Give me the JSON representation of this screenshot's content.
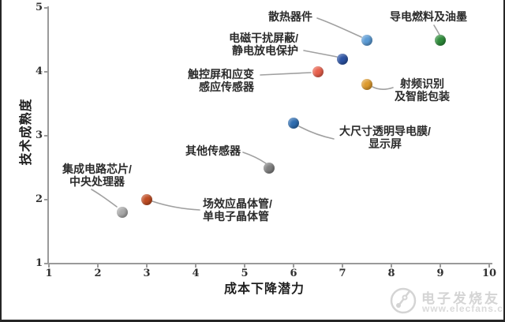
{
  "chart_data": {
    "type": "scatter",
    "title": "",
    "xlabel": "成本下降潜力",
    "ylabel": "技术成熟度",
    "xlim": [
      1,
      10
    ],
    "ylim": [
      1,
      5
    ],
    "xticks": [
      1,
      2,
      3,
      4,
      5,
      6,
      7,
      8,
      9,
      10
    ],
    "yticks": [
      1,
      2,
      3,
      4,
      5
    ],
    "grid": false,
    "legend": "none",
    "points": [
      {
        "name": "heat-dissipation-devices",
        "label": "散热器件",
        "label_lines": [
          "散热器件"
        ],
        "x": 7.5,
        "y": 4.5,
        "color": "#5b9bd5"
      },
      {
        "name": "conductive-fuel-and-ink",
        "label": "导电燃料及油墨",
        "label_lines": [
          "导电燃料及油墨"
        ],
        "x": 9,
        "y": 4.5,
        "color": "#2e8b3a"
      },
      {
        "name": "emi-shielding-esd-protection",
        "label": "电磁干扰屏蔽/静电放电保护",
        "label_lines": [
          "电磁干扰屏蔽/",
          "静电放电保护"
        ],
        "x": 7,
        "y": 4.2,
        "color": "#2b52a3"
      },
      {
        "name": "touchscreen-strain-sensors",
        "label": "触控屏和应变感应传感器",
        "label_lines": [
          "触控屏和应变",
          "感应传感器"
        ],
        "x": 6.5,
        "y": 4,
        "color": "#e8604c"
      },
      {
        "name": "rfid-smart-packaging",
        "label": "射频识别及智能包装",
        "label_lines": [
          "射频识别",
          "及智能包装"
        ],
        "x": 7.5,
        "y": 3.8,
        "color": "#dd9a2e"
      },
      {
        "name": "large-transparent-conductive-film-display",
        "label": "大尺寸透明导电膜/显示屏",
        "label_lines": [
          "大尺寸透明导电膜/",
          "显示屏"
        ],
        "x": 6,
        "y": 3.2,
        "color": "#2d6cb0"
      },
      {
        "name": "other-sensors",
        "label": "其他传感器",
        "label_lines": [
          "其他传感器"
        ],
        "x": 5.5,
        "y": 2.5,
        "color": "#7f7f7f"
      },
      {
        "name": "fet-single-electron-transistor",
        "label": "场效应晶体管/单电子晶体管",
        "label_lines": [
          "场效应晶体管/",
          "单电子晶体管"
        ],
        "x": 3,
        "y": 2,
        "color": "#bf4c22"
      },
      {
        "name": "ic-chip-cpu",
        "label": "集成电路芯片/中央处理器",
        "label_lines": [
          "集成电路芯片/",
          "中央处理器"
        ],
        "x": 2.5,
        "y": 1.8,
        "color": "#a9a9a9"
      }
    ]
  },
  "watermark": {
    "brand": "电子发烧友",
    "url": "www.elecfans.com"
  },
  "colors": {
    "axis": "#9a9a9a",
    "tick_text": "#303030",
    "label_text": "#2b2b2b",
    "leader": "#a0a0a0",
    "watermark": "#d4d4d4",
    "frame": "#262626"
  }
}
